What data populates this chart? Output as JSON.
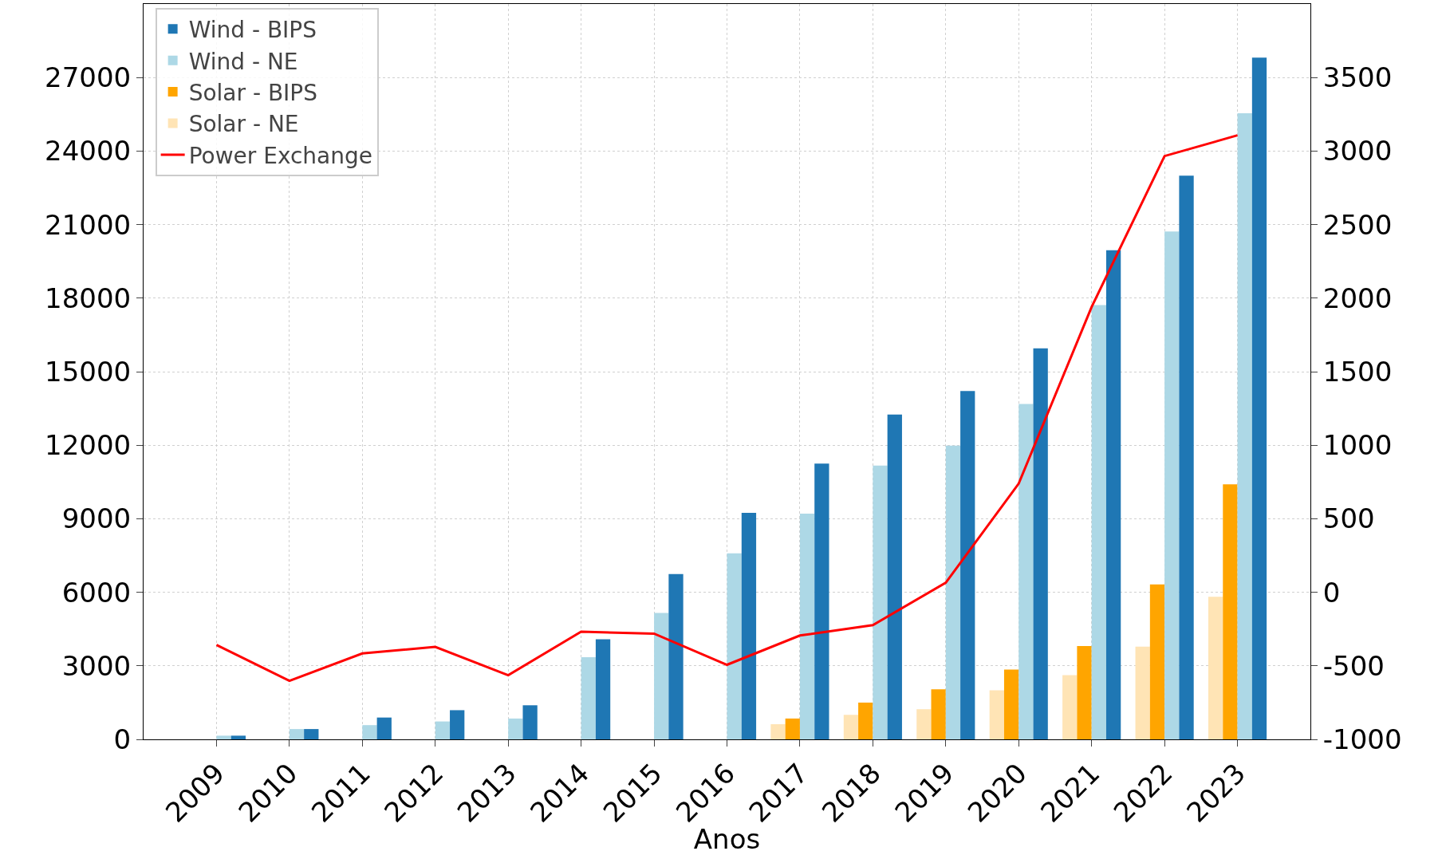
{
  "chart_data": {
    "type": "bar",
    "xlabel": "Anos",
    "categories": [
      "2009",
      "2010",
      "2011",
      "2012",
      "2013",
      "2014",
      "2015",
      "2016",
      "2017",
      "2018",
      "2019",
      "2020",
      "2021",
      "2022",
      "2023"
    ],
    "series": [
      {
        "name": "Wind - BIPS",
        "color": "#1f77b4",
        "values": [
          150,
          420,
          890,
          1190,
          1390,
          4080,
          6740,
          9240,
          11250,
          13250,
          14210,
          15950,
          19950,
          23000,
          27810
        ]
      },
      {
        "name": "Wind - NE",
        "color": "#add8e6",
        "values": [
          150,
          420,
          580,
          730,
          850,
          3350,
          5160,
          7590,
          9210,
          11170,
          11980,
          13680,
          17720,
          20720,
          25540
        ]
      },
      {
        "name": "Solar - BIPS",
        "color": "#ffa500",
        "values": [
          null,
          null,
          null,
          null,
          null,
          null,
          null,
          null,
          850,
          1500,
          2040,
          2850,
          3810,
          6320,
          10400
        ]
      },
      {
        "name": "Solar - NE",
        "color": "#ffe4b5",
        "values": [
          null,
          null,
          null,
          null,
          null,
          null,
          null,
          null,
          620,
          1000,
          1230,
          2000,
          2620,
          3780,
          5820
        ]
      },
      {
        "name": "Power Exchange",
        "type": "line",
        "axis": "y2",
        "color": "#ff0000",
        "values": [
          -358,
          -602,
          -416,
          -371,
          -564,
          -268,
          -281,
          -493,
          -294,
          -223,
          65,
          739,
          1940,
          2966,
          3107
        ]
      }
    ],
    "ylim": [
      0,
      30000
    ],
    "yticks": [
      0,
      3000,
      6000,
      9000,
      12000,
      15000,
      18000,
      21000,
      24000,
      27000
    ],
    "y2lim": [
      -1000,
      4000
    ],
    "y2ticks": [
      -1000,
      -500,
      0,
      500,
      1000,
      1500,
      2000,
      2500,
      3000,
      3500
    ],
    "grid": true,
    "legend": "top left",
    "line_style": "solid"
  }
}
